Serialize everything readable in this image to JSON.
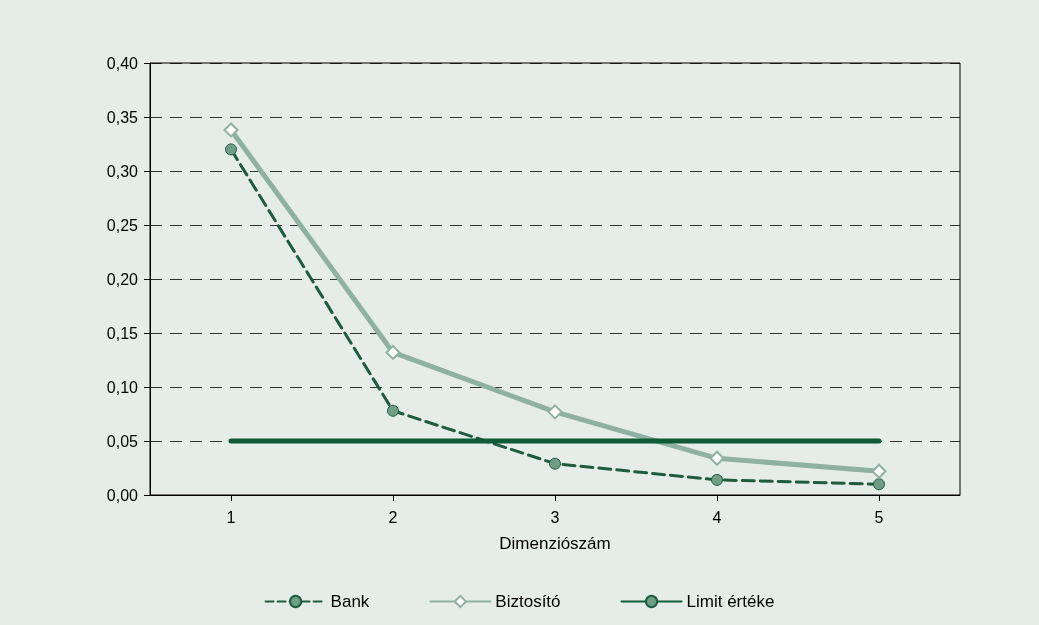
{
  "chart_data": {
    "type": "line",
    "xlabel": "Dimenziószám",
    "categories": [
      "1",
      "2",
      "3",
      "4",
      "5"
    ],
    "series": [
      {
        "name": "Bank",
        "color": "#1f5c3e",
        "marker": "circle",
        "line_style": "dashed",
        "values": [
          0.32,
          0.078,
          0.029,
          0.014,
          0.01
        ]
      },
      {
        "name": "Biztosító",
        "color": "#8fb1a1",
        "marker": "diamond",
        "line_style": "solid",
        "values": [
          0.338,
          0.132,
          0.077,
          0.034,
          0.022
        ]
      },
      {
        "name": "Limit értéke",
        "color": "#0f5a37",
        "marker": "none",
        "line_style": "solid",
        "values": [
          0.05,
          0.05,
          0.05,
          0.05,
          0.05
        ]
      }
    ],
    "ylim": [
      0,
      0.4
    ],
    "yticks": [
      {
        "value": 0,
        "label": "0,00"
      },
      {
        "value": 0.05,
        "label": "0,05"
      },
      {
        "value": 0.1,
        "label": "0,10"
      },
      {
        "value": 0.15,
        "label": "0,15"
      },
      {
        "value": 0.2,
        "label": "0,20"
      },
      {
        "value": 0.25,
        "label": "0,25"
      },
      {
        "value": 0.3,
        "label": "0,30"
      },
      {
        "value": 0.35,
        "label": "0,35"
      },
      {
        "value": 0.4,
        "label": "0,40"
      }
    ],
    "grid": "y",
    "legend": "bottom"
  }
}
